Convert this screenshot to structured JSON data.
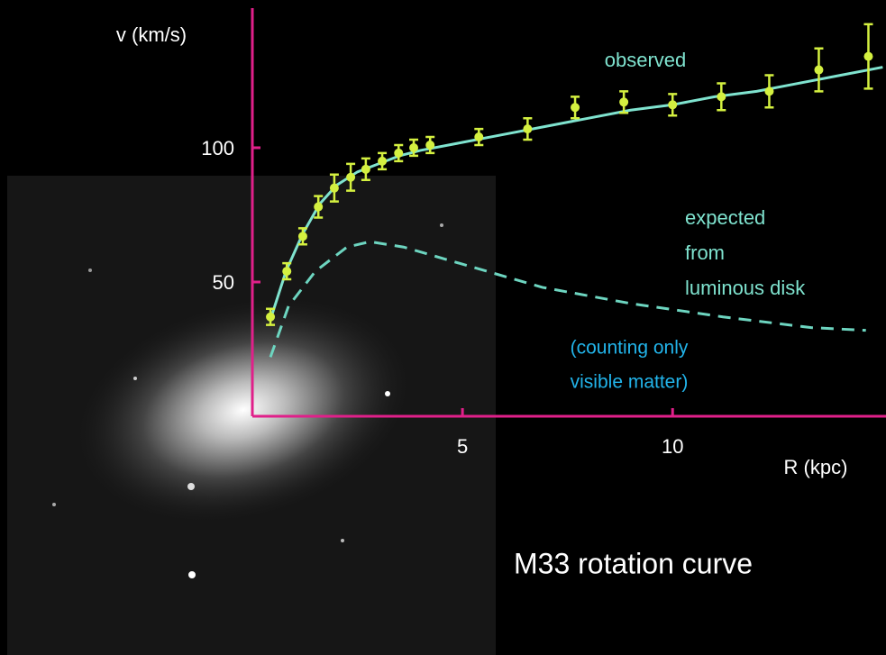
{
  "chart_data": {
    "type": "rotation-curve",
    "title": "M33 rotation curve",
    "x_label": "R (kpc)",
    "y_label": "v (km/s)",
    "xlim": [
      0,
      15.1
    ],
    "ylim": [
      0,
      152
    ],
    "xticks": [
      5,
      10
    ],
    "yticks": [
      50,
      100
    ],
    "axis_color": "#e0208a",
    "series": [
      {
        "name": "observed",
        "color": "#d4f040",
        "style": "points",
        "x": [
          0.43,
          0.82,
          1.2,
          1.57,
          1.95,
          2.34,
          2.7,
          3.09,
          3.48,
          3.84,
          4.23,
          5.39,
          6.55,
          7.68,
          8.84,
          10.0,
          11.16,
          12.3,
          13.48,
          14.66
        ],
        "values": [
          37,
          54,
          67,
          78,
          85,
          89,
          92,
          95,
          98,
          100,
          101,
          104,
          107,
          115,
          117,
          116,
          119,
          121,
          129,
          134
        ],
        "errors": [
          3,
          3,
          3,
          4,
          5,
          5,
          4,
          3,
          3,
          3,
          3,
          3,
          4,
          4,
          4,
          4,
          5,
          6,
          8,
          12
        ]
      },
      {
        "color": "#7fe3cf",
        "style": "solid",
        "x": [
          0.43,
          0.8,
          1.2,
          1.6,
          2,
          2.5,
          3,
          3.5,
          4,
          5,
          6,
          7,
          8,
          9,
          10,
          11,
          12,
          13,
          14,
          15
        ],
        "values": [
          36,
          54,
          68,
          79,
          86,
          91,
          94,
          97,
          99,
          102,
          105,
          108,
          111,
          114,
          116,
          119,
          121,
          124,
          127,
          130
        ]
      },
      {
        "color": "#6dd5c0",
        "style": "dashed",
        "x": [
          0.43,
          0.86,
          1.5,
          2.25,
          2.8,
          3.6,
          4.7,
          6.9,
          9,
          11.2,
          13.3,
          14.6
        ],
        "values": [
          22,
          41,
          54,
          63,
          65,
          63,
          58,
          48,
          42,
          37,
          33,
          32
        ]
      }
    ],
    "annotations": [
      {
        "lines": [
          "observed"
        ]
      },
      {
        "lines": [
          "expected",
          "from",
          "luminous disk"
        ]
      },
      {
        "lines": [
          "(counting only",
          "visible matter)"
        ]
      }
    ]
  }
}
